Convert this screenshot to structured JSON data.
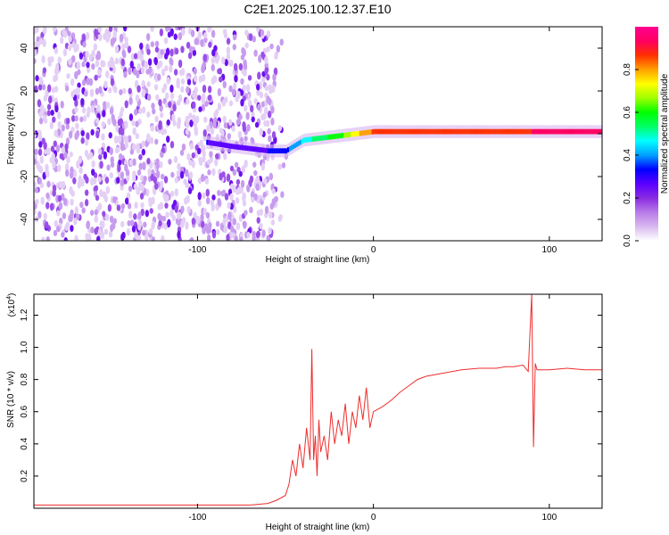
{
  "title": "C2E1.2025.100.12.37.E10",
  "colors": {
    "snr_line": "#ef2d2d",
    "axis": "#000000",
    "colorbar": [
      "#ffffff",
      "#d9b8f0",
      "#b87be8",
      "#8a2be2",
      "#5a00ff",
      "#0000ff",
      "#00a0ff",
      "#00ffff",
      "#00ff66",
      "#00ff00",
      "#a0ff00",
      "#ffff00",
      "#ffa000",
      "#ff3000",
      "#ff0060",
      "#ff0090"
    ]
  },
  "chart_data": [
    {
      "type": "heatmap",
      "xlabel": "Height of straight line (km)",
      "ylabel": "Frequency (Hz)",
      "xlim": [
        -193,
        130
      ],
      "ylim": [
        -50,
        50
      ],
      "xticks": [
        -100,
        0,
        100
      ],
      "xtick_labels": [
        "-100",
        "0",
        "100"
      ],
      "yticks": [
        -40,
        -20,
        0,
        20,
        40
      ],
      "ytick_labels": [
        "-40",
        "-20",
        "0",
        "20",
        "40"
      ],
      "colorbar": {
        "label": "Normalized spectral amplitude",
        "range": [
          0,
          1
        ],
        "ticks": [
          0.0,
          0.2,
          0.4,
          0.6,
          0.8
        ],
        "tick_labels": [
          "0.0",
          "0.2",
          "0.4",
          "0.6",
          "0.8"
        ]
      },
      "signal_track": {
        "x": [
          -95,
          -80,
          -60,
          -50,
          -40,
          -30,
          -20,
          -10,
          0,
          20,
          50,
          90,
          130
        ],
        "freq": [
          -4,
          -6,
          -8,
          -8,
          -3,
          -2,
          -1,
          0,
          1,
          1,
          1,
          1,
          1
        ],
        "amplitude": [
          0.3,
          0.25,
          0.3,
          0.35,
          0.45,
          0.55,
          0.6,
          0.75,
          0.85,
          0.85,
          0.88,
          0.9,
          0.9
        ]
      },
      "noise_region_x": [
        -193,
        -55
      ]
    },
    {
      "type": "line",
      "xlabel": "Height of straight line (km)",
      "ylabel": "SNR (10 * v/v)",
      "y_multiplier": "(x10",
      "y_multiplier_exp": "4",
      "xlim": [
        -193,
        130
      ],
      "ylim": [
        0,
        1.33
      ],
      "xticks": [
        -100,
        0,
        100
      ],
      "xtick_labels": [
        "-100",
        "0",
        "100"
      ],
      "yticks": [
        0.2,
        0.4,
        0.6,
        0.8,
        1.0,
        1.2
      ],
      "ytick_labels": [
        "0.2",
        "0.4",
        "0.6",
        "0.8",
        "1.0",
        "1.2"
      ],
      "series": [
        {
          "x": [
            -193,
            -150,
            -100,
            -70,
            -60,
            -55,
            -50,
            -48,
            -46,
            -44,
            -42,
            -40,
            -38,
            -36,
            -35,
            -34,
            -33,
            -32,
            -31,
            -30,
            -28,
            -26,
            -24,
            -22,
            -20,
            -18,
            -16,
            -14,
            -12,
            -10,
            -8,
            -6,
            -4,
            -2,
            0,
            5,
            10,
            15,
            20,
            25,
            30,
            40,
            50,
            60,
            70,
            75,
            80,
            85,
            88,
            90,
            91,
            92,
            93,
            95,
            100,
            110,
            120,
            130
          ],
          "y": [
            0.02,
            0.02,
            0.02,
            0.02,
            0.03,
            0.05,
            0.08,
            0.15,
            0.3,
            0.2,
            0.4,
            0.25,
            0.5,
            0.3,
            0.99,
            0.3,
            0.45,
            0.2,
            0.55,
            0.35,
            0.45,
            0.3,
            0.6,
            0.4,
            0.55,
            0.45,
            0.65,
            0.4,
            0.6,
            0.5,
            0.7,
            0.55,
            0.75,
            0.5,
            0.6,
            0.63,
            0.67,
            0.72,
            0.76,
            0.8,
            0.82,
            0.84,
            0.86,
            0.87,
            0.87,
            0.88,
            0.88,
            0.89,
            0.85,
            1.33,
            0.38,
            0.9,
            0.86,
            0.86,
            0.86,
            0.87,
            0.86,
            0.86
          ]
        }
      ]
    }
  ]
}
